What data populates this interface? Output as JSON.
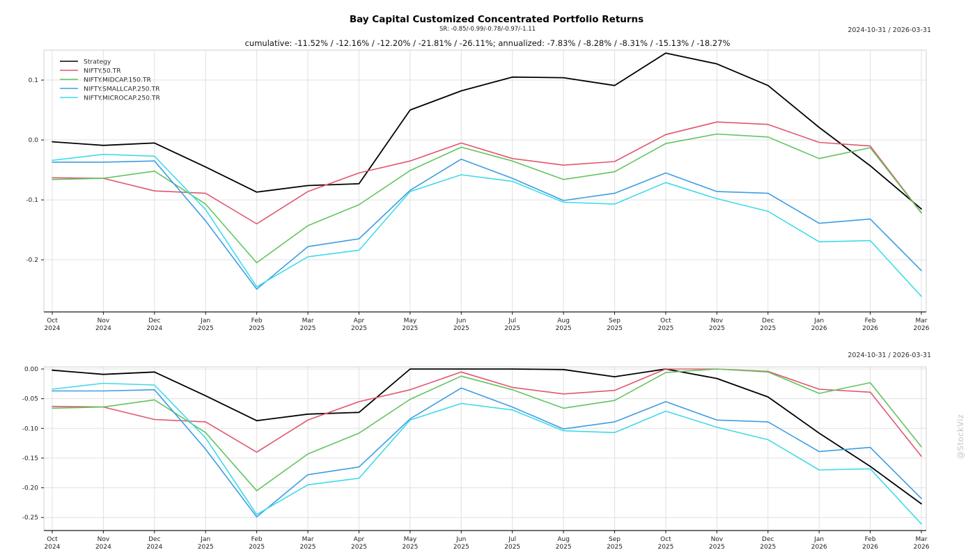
{
  "header": {
    "title": "Bay Capital Customized Concentrated Portfolio Returns",
    "sr_line": "SR: -0.85/-0.99/-0.78/-0.97/-1.11",
    "stats_line": "cumulative: -11.52% / -12.16% / -12.20% / -21.81% / -26.11%; annualized: -7.83% / -8.28% / -8.31% / -15.13% / -18.27%"
  },
  "watermark": "@StockViz",
  "colors": {
    "strategy": "#000000",
    "nifty50": "#e0566e",
    "midcap": "#62c45e",
    "smallcap": "#3d9de3",
    "microcap": "#3fdbe8",
    "grid": "#e0e0e0",
    "axis": "#1a1a1a",
    "tick_label": "#222222",
    "watermark_gray": "#c4c4c4"
  },
  "chart_data": [
    {
      "type": "line",
      "name": "cumulative-returns-chart",
      "date_range_label": "2024-10-31 / 2026-03-31",
      "categories": [
        "Oct 2024",
        "Nov 2024",
        "Dec 2024",
        "Jan 2025",
        "Feb 2025",
        "Mar 2025",
        "Apr 2025",
        "May 2025",
        "Jun 2025",
        "Jul 2025",
        "Aug 2025",
        "Sep 2025",
        "Oct 2025",
        "Nov 2025",
        "Dec 2025",
        "Jan 2026",
        "Feb 2026",
        "Mar 2026"
      ],
      "y_ticks": [
        0.1,
        0.0,
        -0.1,
        -0.2
      ],
      "y_tick_labels": [
        "0.1",
        "0.0",
        "-0.1",
        "-0.2"
      ],
      "ylim": [
        -0.287,
        0.15
      ],
      "grid": true,
      "legend_position": "upper-left",
      "series": [
        {
          "name": "Strategy",
          "color": "#000000",
          "values": [
            -0.003,
            -0.009,
            -0.005,
            -0.045,
            -0.087,
            -0.076,
            -0.073,
            0.05,
            0.082,
            0.105,
            0.104,
            0.091,
            0.145,
            0.127,
            0.091,
            0.021,
            -0.043,
            -0.1152
          ]
        },
        {
          "name": "NIFTY.50.TR",
          "color": "#e0566e",
          "values": [
            -0.063,
            -0.064,
            -0.085,
            -0.089,
            -0.14,
            -0.086,
            -0.055,
            -0.035,
            -0.005,
            -0.031,
            -0.042,
            -0.036,
            0.009,
            0.03,
            0.026,
            -0.004,
            -0.01,
            -0.1216
          ]
        },
        {
          "name": "NIFTY.MIDCAP.150.TR",
          "color": "#62c45e",
          "values": [
            -0.066,
            -0.064,
            -0.052,
            -0.107,
            -0.205,
            -0.143,
            -0.108,
            -0.051,
            -0.012,
            -0.035,
            -0.066,
            -0.053,
            -0.006,
            0.01,
            0.005,
            -0.031,
            -0.013,
            -0.122
          ]
        },
        {
          "name": "NIFTY.SMALLCAP.250.TR",
          "color": "#3d9de3",
          "values": [
            -0.037,
            -0.037,
            -0.035,
            -0.135,
            -0.249,
            -0.178,
            -0.165,
            -0.084,
            -0.032,
            -0.064,
            -0.101,
            -0.089,
            -0.055,
            -0.086,
            -0.089,
            -0.139,
            -0.132,
            -0.2181
          ]
        },
        {
          "name": "NIFTY.MICROCAP.250.TR",
          "color": "#3fdbe8",
          "values": [
            -0.034,
            -0.024,
            -0.027,
            -0.116,
            -0.245,
            -0.195,
            -0.184,
            -0.086,
            -0.058,
            -0.069,
            -0.104,
            -0.107,
            -0.071,
            -0.098,
            -0.119,
            -0.17,
            -0.168,
            -0.2611
          ]
        }
      ]
    },
    {
      "type": "line",
      "name": "drawdown-chart",
      "date_range_label": "2024-10-31 / 2026-03-31",
      "categories": [
        "Oct 2024",
        "Nov 2024",
        "Dec 2024",
        "Jan 2025",
        "Feb 2025",
        "Mar 2025",
        "Apr 2025",
        "May 2025",
        "Jun 2025",
        "Jul 2025",
        "Aug 2025",
        "Sep 2025",
        "Oct 2025",
        "Nov 2025",
        "Dec 2025",
        "Jan 2026",
        "Feb 2026",
        "Mar 2026"
      ],
      "y_ticks": [
        0.0,
        -0.05,
        -0.1,
        -0.15,
        -0.2,
        -0.25
      ],
      "y_tick_labels": [
        "0.00",
        "-0.05",
        "-0.10",
        "-0.15",
        "-0.20",
        "-0.25"
      ],
      "ylim": [
        -0.272,
        0.0035
      ],
      "grid": true,
      "legend_position": "none",
      "series": [
        {
          "name": "Strategy",
          "color": "#000000",
          "values": [
            -0.002,
            -0.009,
            -0.005,
            -0.045,
            -0.087,
            -0.076,
            -0.073,
            0.0,
            0.0,
            0.0,
            -0.001,
            -0.013,
            0.0,
            -0.016,
            -0.047,
            -0.108,
            -0.164,
            -0.227
          ]
        },
        {
          "name": "NIFTY.50.TR",
          "color": "#e0566e",
          "values": [
            -0.063,
            -0.064,
            -0.085,
            -0.089,
            -0.14,
            -0.086,
            -0.055,
            -0.035,
            -0.005,
            -0.031,
            -0.042,
            -0.036,
            0.0,
            0.0,
            -0.004,
            -0.034,
            -0.039,
            -0.147
          ]
        },
        {
          "name": "NIFTY.MIDCAP.150.TR",
          "color": "#62c45e",
          "values": [
            -0.066,
            -0.064,
            -0.052,
            -0.107,
            -0.205,
            -0.143,
            -0.108,
            -0.051,
            -0.012,
            -0.035,
            -0.066,
            -0.053,
            -0.006,
            0.0,
            -0.005,
            -0.041,
            -0.023,
            -0.131
          ]
        },
        {
          "name": "NIFTY.SMALLCAP.250.TR",
          "color": "#3d9de3",
          "values": [
            -0.037,
            -0.037,
            -0.035,
            -0.135,
            -0.249,
            -0.178,
            -0.165,
            -0.084,
            -0.032,
            -0.064,
            -0.101,
            -0.089,
            -0.055,
            -0.086,
            -0.089,
            -0.139,
            -0.132,
            -0.218
          ]
        },
        {
          "name": "NIFTY.MICROCAP.250.TR",
          "color": "#3fdbe8",
          "values": [
            -0.034,
            -0.024,
            -0.027,
            -0.116,
            -0.245,
            -0.195,
            -0.184,
            -0.086,
            -0.058,
            -0.069,
            -0.104,
            -0.107,
            -0.071,
            -0.098,
            -0.119,
            -0.17,
            -0.168,
            -0.261
          ]
        }
      ]
    }
  ]
}
